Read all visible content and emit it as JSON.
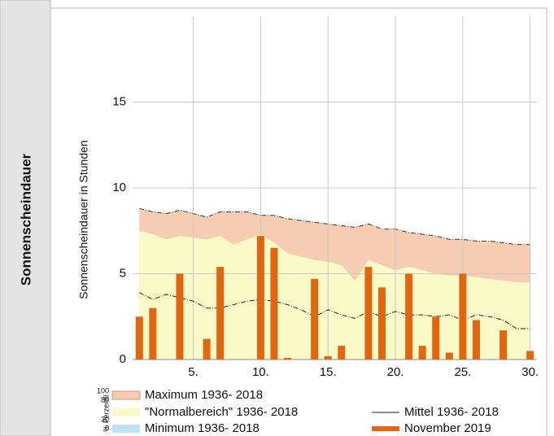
{
  "panel_title": "Sonnenscheindauer",
  "chart_data": {
    "type": "bar",
    "y_label": "Sonnenscheindauer in Stunden",
    "x": [
      1,
      2,
      3,
      4,
      5,
      6,
      7,
      8,
      9,
      10,
      11,
      12,
      13,
      14,
      15,
      16,
      17,
      18,
      19,
      20,
      21,
      22,
      23,
      24,
      25,
      26,
      27,
      28,
      29,
      30
    ],
    "xlim": [
      0.5,
      30.5
    ],
    "xticks": [
      {
        "value": 5,
        "label": "5."
      },
      {
        "value": 10,
        "label": "10."
      },
      {
        "value": 15,
        "label": "15."
      },
      {
        "value": 20,
        "label": "20."
      },
      {
        "value": 25,
        "label": "25."
      },
      {
        "value": 30,
        "label": "30."
      }
    ],
    "ylim": [
      0,
      20
    ],
    "yticks": [
      0,
      5,
      10,
      15
    ],
    "grid": true,
    "legend_scale": {
      "label": "% Perzentil",
      "ticks": [
        "100",
        "80",
        "20",
        "0"
      ]
    },
    "series": [
      {
        "name": "Maximum 1936- 2018",
        "kind": "area",
        "color": "#f6cdb2",
        "values": [
          8.8,
          8.6,
          8.5,
          8.7,
          8.5,
          8.3,
          8.6,
          8.6,
          8.6,
          8.4,
          8.4,
          8.2,
          8.1,
          8.0,
          7.9,
          7.8,
          7.7,
          7.9,
          7.6,
          7.6,
          7.4,
          7.3,
          7.2,
          7.0,
          7.0,
          6.9,
          6.9,
          6.8,
          6.7,
          6.7
        ]
      },
      {
        "name": "\"Normalbereich\" 1936- 2018",
        "kind": "area",
        "color": "#fafac9",
        "values": [
          7.5,
          7.3,
          7.0,
          7.2,
          7.1,
          7.0,
          7.2,
          6.7,
          7.0,
          7.3,
          6.8,
          6.2,
          6.0,
          5.8,
          5.7,
          5.5,
          4.6,
          5.8,
          5.5,
          5.2,
          5.4,
          5.2,
          5.0,
          4.9,
          4.9,
          4.8,
          4.7,
          4.6,
          4.5,
          4.5
        ]
      },
      {
        "name": "Minimum 1936- 2018",
        "kind": "area",
        "color": "#bfe3f2",
        "values": [
          0,
          0,
          0,
          0,
          0,
          0,
          0,
          0,
          0,
          0,
          0,
          0,
          0,
          0,
          0,
          0,
          0,
          0,
          0,
          0,
          0,
          0,
          0,
          0,
          0,
          0,
          0,
          0,
          0,
          0
        ]
      },
      {
        "name": "Mittel 1936- 2018",
        "kind": "line",
        "color": "#222222",
        "values": [
          3.9,
          3.5,
          3.8,
          3.6,
          3.4,
          3.0,
          3.0,
          3.2,
          3.4,
          3.5,
          3.4,
          3.2,
          2.9,
          2.5,
          2.9,
          2.6,
          2.4,
          2.8,
          2.5,
          2.8,
          2.6,
          2.6,
          2.5,
          2.6,
          2.3,
          2.6,
          2.5,
          2.3,
          1.8,
          1.8
        ]
      },
      {
        "name": "November 2019",
        "kind": "bar",
        "color": "#e2650f",
        "values": [
          2.5,
          3.0,
          0,
          5.0,
          0,
          1.2,
          5.4,
          0,
          0,
          7.2,
          6.5,
          0.1,
          0,
          4.7,
          0.2,
          0.8,
          0,
          5.4,
          4.2,
          0,
          5.0,
          0.8,
          2.5,
          0.4,
          5.0,
          2.3,
          0,
          1.7,
          0,
          0.5
        ]
      }
    ]
  }
}
